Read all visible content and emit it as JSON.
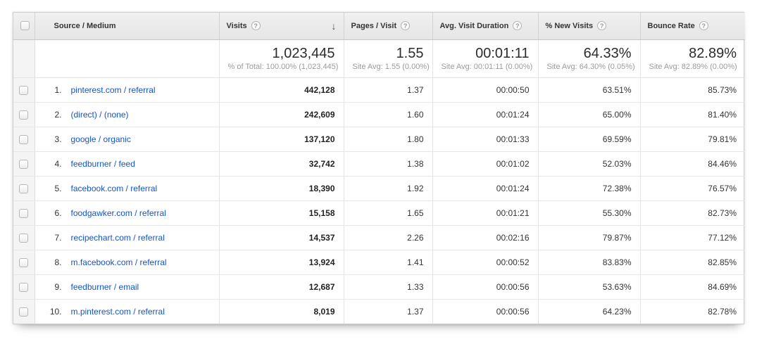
{
  "report": {
    "columns": [
      {
        "label": "Source / Medium",
        "has_help": false,
        "sortable": false
      },
      {
        "label": "Visits",
        "has_help": true,
        "sorted_desc": true
      },
      {
        "label": "Pages / Visit",
        "has_help": true
      },
      {
        "label": "Avg. Visit Duration",
        "has_help": true
      },
      {
        "label": "% New Visits",
        "has_help": true
      },
      {
        "label": "Bounce Rate",
        "has_help": true
      }
    ],
    "summary": {
      "visits": "1,023,445",
      "visits_sub": "% of Total: 100.00% (1,023,445)",
      "pages_per_visit": "1.55",
      "pages_sub": "Site Avg: 1.55 (0.00%)",
      "avg_duration": "00:01:11",
      "duration_sub": "Site Avg: 00:01:11 (0.00%)",
      "pct_new_visits": "64.33%",
      "new_visits_sub": "Site Avg: 64.30% (0.05%)",
      "bounce_rate": "82.89%",
      "bounce_sub": "Site Avg: 82.89% (0.00%)"
    },
    "rows": [
      {
        "rank": "1.",
        "source": "pinterest.com / referral",
        "visits": "442,128",
        "pages": "1.37",
        "duration": "00:00:50",
        "new_visits": "63.51%",
        "bounce": "85.73%"
      },
      {
        "rank": "2.",
        "source": "(direct) / (none)",
        "visits": "242,609",
        "pages": "1.60",
        "duration": "00:01:24",
        "new_visits": "65.00%",
        "bounce": "81.40%"
      },
      {
        "rank": "3.",
        "source": "google / organic",
        "visits": "137,120",
        "pages": "1.80",
        "duration": "00:01:33",
        "new_visits": "69.59%",
        "bounce": "79.81%"
      },
      {
        "rank": "4.",
        "source": "feedburner / feed",
        "visits": "32,742",
        "pages": "1.38",
        "duration": "00:01:02",
        "new_visits": "52.03%",
        "bounce": "84.46%"
      },
      {
        "rank": "5.",
        "source": "facebook.com / referral",
        "visits": "18,390",
        "pages": "1.92",
        "duration": "00:01:24",
        "new_visits": "72.38%",
        "bounce": "76.57%"
      },
      {
        "rank": "6.",
        "source": "foodgawker.com / referral",
        "visits": "15,158",
        "pages": "1.65",
        "duration": "00:01:21",
        "new_visits": "55.30%",
        "bounce": "82.73%"
      },
      {
        "rank": "7.",
        "source": "recipechart.com / referral",
        "visits": "14,537",
        "pages": "2.26",
        "duration": "00:02:16",
        "new_visits": "79.87%",
        "bounce": "77.12%"
      },
      {
        "rank": "8.",
        "source": "m.facebook.com / referral",
        "visits": "13,924",
        "pages": "1.41",
        "duration": "00:00:52",
        "new_visits": "83.83%",
        "bounce": "82.85%"
      },
      {
        "rank": "9.",
        "source": "feedburner / email",
        "visits": "12,687",
        "pages": "1.33",
        "duration": "00:00:56",
        "new_visits": "53.63%",
        "bounce": "84.69%"
      },
      {
        "rank": "10.",
        "source": "m.pinterest.com / referral",
        "visits": "8,019",
        "pages": "1.37",
        "duration": "00:00:56",
        "new_visits": "64.23%",
        "bounce": "82.78%"
      }
    ]
  },
  "icons": {
    "help": "?",
    "sort_descending": "↓"
  },
  "colors": {
    "link_blue": "#1155cc",
    "header_gray": "#e9e9e9",
    "check_col_gray": "#f4f4f4",
    "row_border": "#e7e7e7"
  }
}
